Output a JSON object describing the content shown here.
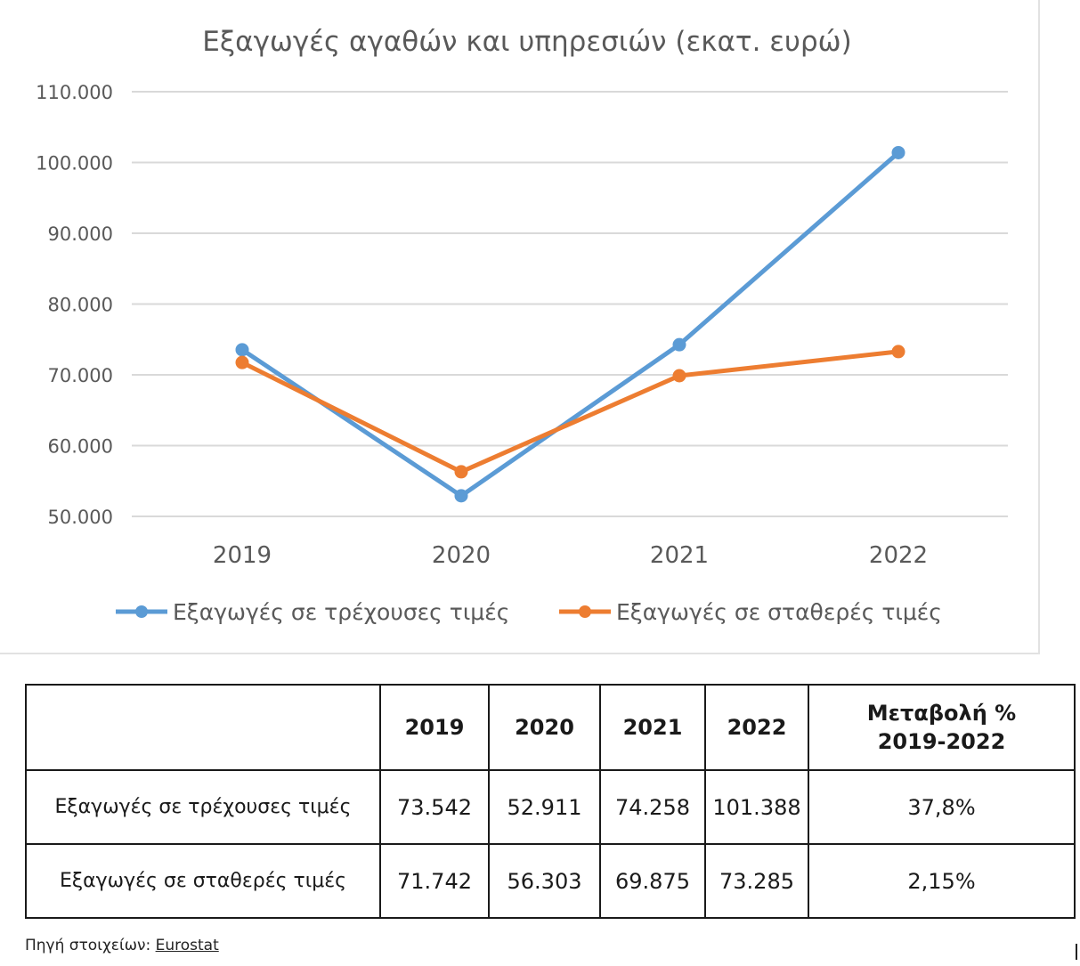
{
  "chart_data": {
    "type": "line",
    "title": "Εξαγωγές αγαθών και υπηρεσιών (εκατ. ευρώ)",
    "categories": [
      "2019",
      "2020",
      "2021",
      "2022"
    ],
    "ylim": [
      50000,
      110000
    ],
    "yticks": [
      "50.000",
      "60.000",
      "70.000",
      "80.000",
      "90.000",
      "100.000",
      "110.000"
    ],
    "ytick_values": [
      50000,
      60000,
      70000,
      80000,
      90000,
      100000,
      110000
    ],
    "grid": true,
    "legend_position": "bottom",
    "series": [
      {
        "name": "Εξαγωγές σε τρέχουσες τιμές",
        "color": "#5b9bd5",
        "values": [
          73542,
          52911,
          74258,
          101388
        ]
      },
      {
        "name": "Εξαγωγές σε σταθερές τιμές",
        "color": "#ed7d31",
        "values": [
          71742,
          56303,
          69875,
          73285
        ]
      }
    ]
  },
  "table": {
    "headers": [
      "",
      "2019",
      "2020",
      "2021",
      "2022",
      "Μεταβολή % 2019-2022"
    ],
    "rows": [
      {
        "label": "Εξαγωγές σε τρέχουσες τιμές",
        "cells": [
          "73.542",
          "52.911",
          "74.258",
          "101.388",
          "37,8%"
        ]
      },
      {
        "label": "Εξαγωγές σε σταθερές τιμές",
        "cells": [
          "71.742",
          "56.303",
          "69.875",
          "73.285",
          "2,15%"
        ]
      }
    ]
  },
  "source": {
    "prefix": "Πηγή στοιχείων:",
    "link": "Eurostat"
  }
}
